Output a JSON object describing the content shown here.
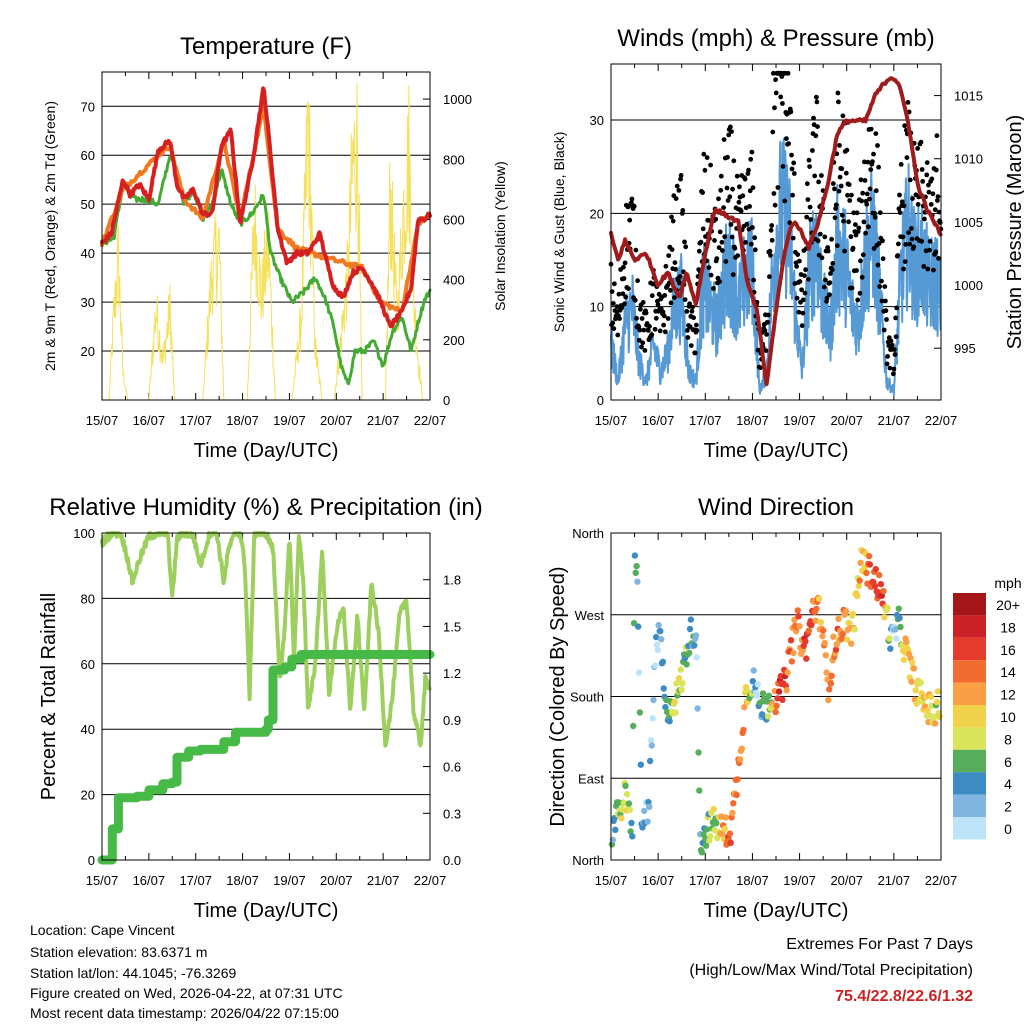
{
  "chart_data": [
    {
      "type": "line",
      "title": "Temperature (F)",
      "xlabel": "Time (Day/UTC)",
      "ylabel": "2m & 9m T (Red, Orange) & 2m Td (Green)",
      "ylabel_right": "Solar Insolation (Yellow)",
      "x_ticks": [
        "15/07",
        "16/07",
        "17/07",
        "18/07",
        "19/07",
        "20/07",
        "21/07",
        "22/07"
      ],
      "ylim": [
        10,
        77
      ],
      "y_ticks": [
        20,
        30,
        40,
        50,
        60,
        70
      ],
      "ylim_right": [
        0,
        1090
      ],
      "y_ticks_right": [
        0,
        200,
        400,
        600,
        800,
        1000
      ],
      "series": [
        {
          "name": "2m T",
          "color": "#d62020",
          "x": [
            0,
            0.2,
            0.45,
            0.6,
            0.8,
            1.0,
            1.2,
            1.45,
            1.6,
            1.75,
            1.95,
            2.15,
            2.35,
            2.55,
            2.75,
            2.95,
            3.2,
            3.45,
            3.58,
            3.75,
            3.95,
            4.15,
            4.4,
            4.65,
            4.8,
            4.95,
            5.15,
            5.35,
            5.55,
            5.75,
            5.95,
            6.15,
            6.4,
            6.6,
            6.75,
            6.9,
            7.0
          ],
          "y": [
            42,
            44,
            55,
            52,
            54,
            51,
            61,
            63,
            54,
            51,
            53,
            48,
            48,
            62,
            65,
            46,
            58,
            74,
            62,
            45,
            38,
            40,
            40,
            44,
            38,
            33,
            31,
            36,
            37,
            34,
            30,
            25,
            28,
            33,
            47,
            47,
            48
          ]
        },
        {
          "name": "9m T",
          "color": "#f07820",
          "x": [
            0,
            0.45,
            1.2,
            1.45,
            1.75,
            2.15,
            2.6,
            2.95,
            3.45,
            3.75,
            4.15,
            4.8,
            5.55,
            5.95,
            6.4,
            6.75,
            7.0
          ],
          "y": [
            42,
            53,
            60,
            62,
            51,
            47,
            63,
            47,
            70,
            45,
            41,
            39,
            37,
            30,
            28,
            46,
            48
          ]
        },
        {
          "name": "2m Td",
          "color": "#44aa33",
          "x": [
            0,
            0.25,
            0.45,
            0.7,
            0.95,
            1.2,
            1.45,
            1.6,
            1.75,
            1.95,
            2.15,
            2.35,
            2.55,
            2.75,
            2.95,
            3.2,
            3.45,
            3.6,
            3.8,
            4.05,
            4.3,
            4.55,
            4.75,
            4.95,
            5.1,
            5.25,
            5.4,
            5.6,
            5.8,
            6.0,
            6.2,
            6.4,
            6.6,
            6.75,
            6.9,
            7.0
          ],
          "y": [
            42,
            43,
            54,
            51,
            51,
            50,
            60,
            57,
            50,
            53,
            47,
            50,
            57,
            50,
            46,
            48,
            52,
            40,
            35,
            30,
            32,
            35,
            31,
            25,
            17,
            13,
            20,
            20,
            22,
            17,
            24,
            27,
            20,
            26,
            31,
            32
          ]
        },
        {
          "name": "Solar Insolation",
          "color": "#f5e05a",
          "axis": "right",
          "x": [
            0.15,
            0.25,
            0.35,
            0.45,
            0.55,
            1.0,
            1.15,
            1.3,
            1.45,
            1.55,
            2.15,
            2.35,
            2.5,
            2.6,
            3.1,
            3.25,
            3.4,
            3.55,
            3.7,
            4.05,
            4.25,
            4.4,
            4.55,
            4.7,
            4.95,
            5.05,
            5.25,
            5.35,
            5.45,
            5.55,
            6.05,
            6.15,
            6.3,
            6.42,
            6.55,
            6.65,
            6.75,
            6.85
          ],
          "y": [
            0,
            320,
            550,
            100,
            0,
            0,
            350,
            150,
            350,
            0,
            0,
            500,
            600,
            0,
            0,
            700,
            400,
            600,
            0,
            0,
            300,
            1070,
            200,
            0,
            0,
            150,
            500,
            900,
            1000,
            0,
            0,
            800,
            300,
            700,
            950,
            400,
            150,
            0
          ]
        }
      ]
    },
    {
      "type": "line",
      "title": "Winds (mph) & Pressure (mb)",
      "xlabel": "Time (Day/UTC)",
      "ylabel": "Sonic Wind & Gust (Blue, Black)",
      "ylabel_right": "Station Pressure (Maroon)",
      "x_ticks": [
        "15/07",
        "16/07",
        "17/07",
        "18/07",
        "19/07",
        "20/07",
        "21/07",
        "22/07"
      ],
      "ylim": [
        0,
        36
      ],
      "y_ticks": [
        0,
        10,
        20,
        30
      ],
      "ylim_right": [
        990.9,
        1017.5
      ],
      "y_ticks_right": [
        995,
        1000,
        1005,
        1010,
        1015
      ],
      "series": [
        {
          "name": "Sonic Wind",
          "color": "#5599d5",
          "x": [
            0,
            0.15,
            0.3,
            0.45,
            0.6,
            0.75,
            0.9,
            1.05,
            1.2,
            1.35,
            1.5,
            1.65,
            1.8,
            1.95,
            2.1,
            2.25,
            2.4,
            2.55,
            2.7,
            2.85,
            3.0,
            3.15,
            3.3,
            3.45,
            3.6,
            3.75,
            3.9,
            4.05,
            4.2,
            4.35,
            4.5,
            4.65,
            4.8,
            4.95,
            5.1,
            5.25,
            5.4,
            5.55,
            5.7,
            5.85,
            6.0,
            6.15,
            6.3,
            6.45,
            6.6,
            6.75,
            6.9,
            7.0
          ],
          "y": [
            6,
            2,
            8,
            10,
            4,
            2,
            6,
            3,
            5,
            10,
            11,
            3,
            2,
            12,
            10,
            8,
            13,
            14,
            10,
            13,
            14,
            1,
            3,
            15,
            20,
            19,
            10,
            3,
            13,
            17,
            10,
            7,
            16,
            15,
            10,
            8,
            15,
            18,
            11,
            2,
            1,
            13,
            18,
            14,
            15,
            12,
            13,
            10
          ]
        },
        {
          "name": "Gust",
          "color": "#000000",
          "x": [
            0,
            0.15,
            0.3,
            0.45,
            0.6,
            0.75,
            0.9,
            1.05,
            1.2,
            1.35,
            1.5,
            1.65,
            1.8,
            1.95,
            2.1,
            2.25,
            2.4,
            2.55,
            2.7,
            2.85,
            3.0,
            3.15,
            3.3,
            3.45,
            3.6,
            3.75,
            3.9,
            4.05,
            4.2,
            4.35,
            4.5,
            4.65,
            4.8,
            4.95,
            5.1,
            5.25,
            5.4,
            5.55,
            5.7,
            5.85,
            6.0,
            6.15,
            6.3,
            6.45,
            6.6,
            6.75,
            6.9,
            7.0
          ],
          "y": [
            11,
            8,
            16,
            18,
            9,
            7,
            11,
            8,
            12,
            17,
            18,
            8,
            7,
            20,
            19,
            15,
            21,
            22,
            17,
            19,
            20,
            4,
            8,
            28,
            34,
            30,
            18,
            9,
            20,
            25,
            17,
            13,
            25,
            24,
            17,
            15,
            23,
            26,
            18,
            6,
            4,
            20,
            24,
            20,
            21,
            18,
            22,
            16
          ]
        },
        {
          "name": "Station Pressure",
          "color": "#a01c1c",
          "axis": "right",
          "x": [
            0,
            0.15,
            0.3,
            0.5,
            0.75,
            1.0,
            1.2,
            1.45,
            1.6,
            1.8,
            2.0,
            2.2,
            2.45,
            2.7,
            2.9,
            3.1,
            3.3,
            3.5,
            3.7,
            3.85,
            4.0,
            4.2,
            4.4,
            4.6,
            4.8,
            5.0,
            5.2,
            5.4,
            5.6,
            5.8,
            5.95,
            6.1,
            6.3,
            6.5,
            6.7,
            6.85,
            7.0
          ],
          "y": [
            1004,
            1002,
            1003.5,
            1002,
            1002.5,
            1000,
            1001,
            999,
            1001,
            998.5,
            1002.5,
            1006,
            1005.5,
            1005,
            1000,
            998,
            992,
            998,
            1003,
            1005,
            1004.5,
            1003,
            1005,
            1008,
            1012,
            1013,
            1013,
            1013,
            1015,
            1016,
            1016.5,
            1016,
            1013,
            1008,
            1006,
            1005,
            1004
          ]
        }
      ]
    },
    {
      "type": "line",
      "title": "Relative Humidity (%) & Precipitation (in)",
      "xlabel": "Time (Day/UTC)",
      "ylabel": "Percent & Total Rainfall",
      "x_ticks": [
        "15/07",
        "16/07",
        "17/07",
        "18/07",
        "19/07",
        "20/07",
        "21/07",
        "22/07"
      ],
      "ylim": [
        0,
        100
      ],
      "y_ticks": [
        0,
        20,
        40,
        60,
        80,
        100
      ],
      "ylim_right": [
        0,
        2.1
      ],
      "y_ticks_right": [
        "0.0",
        "0.3",
        "0.6",
        "0.9",
        "1.2",
        "1.5",
        "1.8"
      ],
      "series": [
        {
          "name": "Relative Humidity",
          "color": "#9ccf5e",
          "x": [
            0,
            0.2,
            0.4,
            0.55,
            0.65,
            0.8,
            1.0,
            1.2,
            1.4,
            1.5,
            1.6,
            1.7,
            1.8,
            1.95,
            2.1,
            2.3,
            2.45,
            2.6,
            2.7,
            2.85,
            2.95,
            3.05,
            3.15,
            3.25,
            3.35,
            3.5,
            3.65,
            3.8,
            3.9,
            4.0,
            4.1,
            4.2,
            4.3,
            4.4,
            4.55,
            4.7,
            4.85,
            5.0,
            5.15,
            5.3,
            5.45,
            5.6,
            5.75,
            5.9,
            6.05,
            6.2,
            6.35,
            6.5,
            6.65,
            6.8,
            6.9,
            7.0
          ],
          "y": [
            97,
            100,
            100,
            92,
            85,
            92,
            99,
            100,
            100,
            80,
            98,
            100,
            100,
            99,
            90,
            100,
            100,
            85,
            95,
            100,
            100,
            90,
            50,
            100,
            100,
            100,
            95,
            55,
            70,
            100,
            60,
            100,
            85,
            45,
            60,
            95,
            50,
            70,
            78,
            45,
            75,
            45,
            85,
            70,
            35,
            50,
            75,
            80,
            45,
            35,
            55,
            53
          ]
        },
        {
          "name": "Total Precipitation",
          "color": "#46b946",
          "axis": "right",
          "x": [
            0,
            0.2,
            0.22,
            0.35,
            0.6,
            0.75,
            1.0,
            1.3,
            1.5,
            1.6,
            1.85,
            2.1,
            2.6,
            2.85,
            3.5,
            3.55,
            3.65,
            3.9,
            4.05,
            4.25,
            7.0
          ],
          "y": [
            0.0,
            0.0,
            0.2,
            0.4,
            0.4,
            0.41,
            0.45,
            0.49,
            0.5,
            0.66,
            0.7,
            0.71,
            0.76,
            0.82,
            0.84,
            0.9,
            1.22,
            1.24,
            1.29,
            1.32,
            1.32
          ]
        }
      ]
    },
    {
      "type": "scatter",
      "title": "Wind Direction",
      "xlabel": "Time (Day/UTC)",
      "ylabel": "Direction (Colored By Speed)",
      "x_ticks": [
        "15/07",
        "16/07",
        "17/07",
        "18/07",
        "19/07",
        "20/07",
        "21/07",
        "22/07"
      ],
      "ylim": [
        0,
        360
      ],
      "y_ticks": [
        {
          "label": "North",
          "value": 0
        },
        {
          "label": "East",
          "value": 90
        },
        {
          "label": "South",
          "value": 180
        },
        {
          "label": "West",
          "value": 270
        },
        {
          "label": "North",
          "value": 360
        }
      ],
      "direction_track": {
        "x": [
          0,
          0.15,
          0.3,
          0.45,
          0.5,
          0.55,
          0.65,
          0.8,
          0.95,
          1.05,
          1.15,
          1.25,
          1.4,
          1.5,
          1.6,
          1.7,
          1.8,
          1.9,
          2.05,
          2.2,
          2.4,
          2.55,
          2.7,
          2.85,
          3.0,
          3.15,
          3.3,
          3.4,
          3.55,
          3.7,
          3.85,
          3.95,
          4.1,
          4.2,
          4.3,
          4.45,
          4.6,
          4.75,
          4.95,
          5.1,
          5.2,
          5.3,
          5.45,
          5.6,
          5.75,
          5.85,
          5.95,
          6.1,
          6.25,
          6.4,
          6.55,
          6.7,
          6.85,
          7.0
        ],
        "y": [
          30,
          50,
          70,
          30,
          320,
          340,
          40,
          60,
          230,
          250,
          160,
          170,
          180,
          200,
          230,
          250,
          255,
          20,
          35,
          40,
          30,
          35,
          100,
          180,
          200,
          170,
          170,
          180,
          180,
          195,
          240,
          260,
          230,
          250,
          280,
          270,
          190,
          240,
          265,
          250,
          280,
          330,
          320,
          310,
          290,
          270,
          240,
          260,
          230,
          200,
          180,
          170,
          160,
          175
        ]
      },
      "speed_track": {
        "x": [
          0,
          0.3,
          0.6,
          1.0,
          1.4,
          1.8,
          2.2,
          2.5,
          2.8,
          3.1,
          3.4,
          3.6,
          3.9,
          4.2,
          4.5,
          4.8,
          5.1,
          5.4,
          5.7,
          6.0,
          6.3,
          6.6,
          7.0
        ],
        "y": [
          5,
          10,
          4,
          3,
          9,
          4,
          9,
          15,
          14,
          3,
          10,
          18,
          14,
          17,
          12,
          15,
          10,
          14,
          18,
          2,
          13,
          11,
          10
        ]
      },
      "color_scale": {
        "title": "mph",
        "labels": [
          "20+",
          "18",
          "16",
          "14",
          "12",
          "10",
          "8",
          "6",
          "4",
          "2",
          "0"
        ],
        "colors": [
          "#a51618",
          "#cc2126",
          "#e53b2c",
          "#f26b2f",
          "#fa9f45",
          "#f2d24b",
          "#d9e45a",
          "#56ad5a",
          "#3d8bc5",
          "#7fb5df",
          "#bce3f7"
        ]
      }
    }
  ],
  "footer": {
    "location": "Location: Cape Vincent",
    "elevation": "Station elevation: 83.6371 m",
    "latlon": "Station lat/lon: 44.1045; -76.3269",
    "created": "Figure created on Wed, 2026-04-22, at 07:31 UTC",
    "recent": "Most recent data timestamp: 2026/04/22 07:15:00"
  },
  "extremes": {
    "title": "Extremes For Past 7 Days",
    "subtitle": "(High/Low/Max Wind/Total Precipitation)",
    "values": "75.4/22.8/22.6/1.32"
  }
}
